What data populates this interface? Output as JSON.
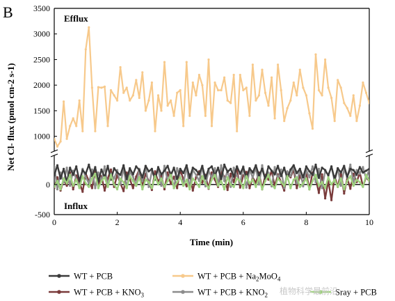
{
  "panel_label": "B",
  "chart_data": {
    "type": "line",
    "xlabel": "Time (min)",
    "ylabel": "Net Cl- flux (pmol cm-2 s-1)",
    "annotations": {
      "top": "Efflux",
      "bottom": "Influx"
    },
    "x_ticks": [
      "0",
      "2",
      "4",
      "6",
      "8",
      "10"
    ],
    "y_ticks_upper": [
      "1000",
      "1500",
      "2000",
      "2500",
      "3000",
      "3500"
    ],
    "y_ticks_lower": [
      "-500",
      "0"
    ],
    "xlim": [
      0,
      10
    ],
    "ylim_upper": [
      750,
      3500
    ],
    "ylim_lower": [
      -500,
      450
    ],
    "axis_break": true,
    "legend": [
      "WT + PCB",
      "WT + PCB + Na2MoO4",
      "WT + PCB + KNO3",
      "WT + PCB + KNO2",
      "Sray + PCB"
    ],
    "series": [
      {
        "name": "WT + PCB",
        "color": "#3a3a3a",
        "x": [
          0,
          0.1,
          0.2,
          0.3,
          0.4,
          0.5,
          0.6,
          0.7,
          0.8,
          0.9,
          1.0,
          1.1,
          1.2,
          1.3,
          1.4,
          1.5,
          1.6,
          1.7,
          1.8,
          1.9,
          2.0,
          2.1,
          2.2,
          2.3,
          2.4,
          2.5,
          2.6,
          2.7,
          2.8,
          2.9,
          3.0,
          3.1,
          3.2,
          3.3,
          3.4,
          3.5,
          3.6,
          3.7,
          3.8,
          3.9,
          4.0,
          4.1,
          4.2,
          4.3,
          4.4,
          4.5,
          4.6,
          4.7,
          4.8,
          4.9,
          5.0,
          5.1,
          5.2,
          5.3,
          5.4,
          5.5,
          5.6,
          5.7,
          5.8,
          5.9,
          6.0,
          6.1,
          6.2,
          6.3,
          6.4,
          6.5,
          6.6,
          6.7,
          6.8,
          6.9,
          7.0,
          7.1,
          7.2,
          7.3,
          7.4,
          7.5,
          7.6,
          7.7,
          7.8,
          7.9,
          8.0,
          8.1,
          8.2,
          8.3,
          8.4,
          8.5,
          8.6,
          8.7,
          8.8,
          8.9,
          9.0,
          9.1,
          9.2,
          9.3,
          9.4,
          9.5,
          9.6,
          9.7,
          9.8,
          9.9,
          10.0
        ],
        "y": [
          150,
          320,
          100,
          260,
          40,
          280,
          160,
          300,
          60,
          240,
          180,
          330,
          140,
          290,
          50,
          250,
          120,
          310,
          80,
          270,
          200,
          160,
          320,
          90,
          270,
          170,
          300,
          240,
          120,
          310,
          220,
          260,
          80,
          290,
          170,
          230,
          310,
          150,
          280,
          90,
          260,
          190,
          320,
          110,
          280,
          240,
          170,
          310,
          100,
          260,
          300,
          150,
          280,
          90,
          330,
          210,
          260,
          130,
          300,
          180,
          290,
          110,
          270,
          200,
          320,
          150,
          260,
          90,
          300,
          230,
          170,
          310,
          140,
          280,
          100,
          250,
          320,
          190,
          260,
          120,
          300,
          220,
          160,
          330,
          110,
          280,
          240,
          150,
          300,
          90,
          270,
          200,
          310,
          130,
          260,
          240,
          160,
          290,
          200,
          230,
          260
        ]
      },
      {
        "name": "WT + PCB + Na2MoO4",
        "color": "#f7c98b",
        "x": [
          0,
          0.1,
          0.2,
          0.3,
          0.4,
          0.5,
          0.6,
          0.7,
          0.8,
          0.9,
          1.0,
          1.1,
          1.2,
          1.3,
          1.4,
          1.5,
          1.6,
          1.7,
          1.8,
          1.9,
          2.0,
          2.1,
          2.2,
          2.3,
          2.4,
          2.5,
          2.6,
          2.7,
          2.8,
          2.9,
          3.0,
          3.1,
          3.2,
          3.3,
          3.4,
          3.5,
          3.6,
          3.7,
          3.8,
          3.9,
          4.0,
          4.1,
          4.2,
          4.3,
          4.4,
          4.5,
          4.6,
          4.7,
          4.8,
          4.9,
          5.0,
          5.1,
          5.2,
          5.3,
          5.4,
          5.5,
          5.6,
          5.7,
          5.8,
          5.9,
          6.0,
          6.1,
          6.2,
          6.3,
          6.4,
          6.5,
          6.6,
          6.7,
          6.8,
          6.9,
          7.0,
          7.1,
          7.2,
          7.3,
          7.4,
          7.5,
          7.6,
          7.7,
          7.8,
          7.9,
          8.0,
          8.1,
          8.2,
          8.3,
          8.4,
          8.5,
          8.6,
          8.7,
          8.8,
          8.9,
          9.0,
          9.1,
          9.2,
          9.3,
          9.4,
          9.5,
          9.6,
          9.7,
          9.8,
          9.9,
          10.0
        ],
        "y": [
          950,
          800,
          900,
          1680,
          950,
          1200,
          1350,
          1200,
          1700,
          1100,
          2700,
          3130,
          1950,
          1100,
          1960,
          1950,
          1970,
          1200,
          1900,
          1800,
          1700,
          2350,
          1850,
          1950,
          1700,
          1800,
          2100,
          1750,
          2250,
          1500,
          1700,
          2050,
          1100,
          1800,
          1500,
          2450,
          1600,
          1700,
          1400,
          1850,
          1900,
          1200,
          2450,
          1400,
          2050,
          1800,
          2200,
          2000,
          1400,
          2500,
          1200,
          2050,
          1900,
          1900,
          2150,
          1700,
          1650,
          2200,
          1100,
          2200,
          1900,
          1950,
          1400,
          2400,
          1700,
          1800,
          2300,
          1850,
          1600,
          2150,
          1350,
          2400,
          1900,
          1300,
          1550,
          1700,
          2050,
          1800,
          2300,
          1950,
          1800,
          1450,
          1150,
          2600,
          1900,
          1800,
          2500,
          1950,
          1750,
          1300,
          2100,
          1950,
          1650,
          1550,
          1400,
          1800,
          1300,
          1600,
          2050,
          1850,
          1650
        ]
      },
      {
        "name": "WT + PCB + KNO3",
        "color": "#7a3b3b",
        "x": [
          0,
          0.1,
          0.2,
          0.3,
          0.4,
          0.5,
          0.6,
          0.7,
          0.8,
          0.9,
          1.0,
          1.1,
          1.2,
          1.3,
          1.4,
          1.5,
          1.6,
          1.7,
          1.8,
          1.9,
          2.0,
          2.1,
          2.2,
          2.3,
          2.4,
          2.5,
          2.6,
          2.7,
          2.8,
          2.9,
          3.0,
          3.1,
          3.2,
          3.3,
          3.4,
          3.5,
          3.6,
          3.7,
          3.8,
          3.9,
          4.0,
          4.1,
          4.2,
          4.3,
          4.4,
          4.5,
          4.6,
          4.7,
          4.8,
          4.9,
          5.0,
          5.1,
          5.2,
          5.3,
          5.4,
          5.5,
          5.6,
          5.7,
          5.8,
          5.9,
          6.0,
          6.1,
          6.2,
          6.3,
          6.4,
          6.5,
          6.6,
          6.7,
          6.8,
          6.9,
          7.0,
          7.1,
          7.2,
          7.3,
          7.4,
          7.5,
          7.6,
          7.7,
          7.8,
          7.9,
          8.0,
          8.1,
          8.2,
          8.3,
          8.4,
          8.5,
          8.6,
          8.7,
          8.8,
          8.9,
          9.0,
          9.1,
          9.2,
          9.3,
          9.4,
          9.5,
          9.6,
          9.7,
          9.8,
          9.9,
          10.0
        ],
        "y": [
          -60,
          120,
          -100,
          80,
          -20,
          200,
          -80,
          150,
          40,
          -120,
          180,
          60,
          -60,
          220,
          0,
          140,
          -100,
          100,
          250,
          -40,
          160,
          20,
          -110,
          200,
          90,
          -60,
          130,
          250,
          -40,
          180,
          60,
          -90,
          220,
          40,
          150,
          -80,
          200,
          10,
          130,
          -60,
          240,
          90,
          -30,
          170,
          -100,
          120,
          220,
          30,
          160,
          -70,
          200,
          80,
          -40,
          220,
          130,
          -90,
          180,
          40,
          250,
          -50,
          150,
          210,
          -60,
          120,
          30,
          200,
          -80,
          160,
          80,
          230,
          -30,
          170,
          40,
          -100,
          200,
          120,
          250,
          -60,
          150,
          30,
          190,
          -80,
          200,
          100,
          -140,
          170,
          -230,
          60,
          -260,
          140,
          -40,
          210,
          -150,
          110,
          -70,
          180,
          40,
          200,
          -30,
          120,
          60
        ]
      },
      {
        "name": "WT + PCB + KNO2",
        "color": "#8c8c8c",
        "x": [
          0,
          0.1,
          0.2,
          0.3,
          0.4,
          0.5,
          0.6,
          0.7,
          0.8,
          0.9,
          1.0,
          1.1,
          1.2,
          1.3,
          1.4,
          1.5,
          1.6,
          1.7,
          1.8,
          1.9,
          2.0,
          2.1,
          2.2,
          2.3,
          2.4,
          2.5,
          2.6,
          2.7,
          2.8,
          2.9,
          3.0,
          3.1,
          3.2,
          3.3,
          3.4,
          3.5,
          3.6,
          3.7,
          3.8,
          3.9,
          4.0,
          4.1,
          4.2,
          4.3,
          4.4,
          4.5,
          4.6,
          4.7,
          4.8,
          4.9,
          5.0,
          5.1,
          5.2,
          5.3,
          5.4,
          5.5,
          5.6,
          5.7,
          5.8,
          5.9,
          6.0,
          6.1,
          6.2,
          6.3,
          6.4,
          6.5,
          6.6,
          6.7,
          6.8,
          6.9,
          7.0,
          7.1,
          7.2,
          7.3,
          7.4,
          7.5,
          7.6,
          7.7,
          7.8,
          7.9,
          8.0,
          8.1,
          8.2,
          8.3,
          8.4,
          8.5,
          8.6,
          8.7,
          8.8,
          8.9,
          9.0,
          9.1,
          9.2,
          9.3,
          9.4,
          9.5,
          9.6,
          9.7,
          9.8,
          9.9,
          10.0
        ],
        "y": [
          300,
          -80,
          200,
          40,
          280,
          -20,
          230,
          90,
          -40,
          260,
          120,
          20,
          250,
          -60,
          200,
          60,
          300,
          -30,
          180,
          100,
          240,
          0,
          270,
          -50,
          210,
          130,
          -20,
          260,
          60,
          300,
          -40,
          220,
          100,
          260,
          -20,
          310,
          60,
          200,
          -60,
          270,
          120,
          20,
          290,
          -50,
          240,
          160,
          60,
          300,
          -30,
          230,
          110,
          270,
          0,
          320,
          60,
          230,
          -40,
          280,
          150,
          20,
          300,
          -50,
          240,
          120,
          280,
          0,
          320,
          70,
          200,
          -30,
          290,
          100,
          250,
          -60,
          220,
          140,
          310,
          20,
          260,
          -30,
          240,
          120,
          300,
          40,
          260,
          -60,
          220,
          160,
          300,
          50,
          270,
          -20,
          250,
          120,
          330,
          40,
          240,
          180,
          290,
          100,
          250
        ]
      },
      {
        "name": "Sray + PCB",
        "color": "#9fd17e",
        "x": [
          0,
          0.1,
          0.2,
          0.3,
          0.4,
          0.5,
          0.6,
          0.7,
          0.8,
          0.9,
          1.0,
          1.1,
          1.2,
          1.3,
          1.4,
          1.5,
          1.6,
          1.7,
          1.8,
          1.9,
          2.0,
          2.1,
          2.2,
          2.3,
          2.4,
          2.5,
          2.6,
          2.7,
          2.8,
          2.9,
          3.0,
          3.1,
          3.2,
          3.3,
          3.4,
          3.5,
          3.6,
          3.7,
          3.8,
          3.9,
          4.0,
          4.1,
          4.2,
          4.3,
          4.4,
          4.5,
          4.6,
          4.7,
          4.8,
          4.9,
          5.0,
          5.1,
          5.2,
          5.3,
          5.4,
          5.5,
          5.6,
          5.7,
          5.8,
          5.9,
          6.0,
          6.1,
          6.2,
          6.3,
          6.4,
          6.5,
          6.6,
          6.7,
          6.8,
          6.9,
          7.0,
          7.1,
          7.2,
          7.3,
          7.4,
          7.5,
          7.6,
          7.7,
          7.8,
          7.9,
          8.0,
          8.1,
          8.2,
          8.3,
          8.4,
          8.5,
          8.6,
          8.7,
          8.8,
          8.9,
          9.0,
          9.1,
          9.2,
          9.3,
          9.4,
          9.5,
          9.6,
          9.7,
          9.8,
          9.9,
          10.0
        ],
        "y": [
          -40,
          60,
          -80,
          100,
          20,
          160,
          -20,
          80,
          -60,
          140,
          20,
          -40,
          100,
          180,
          -60,
          60,
          120,
          -40,
          160,
          0,
          -80,
          100,
          40,
          -60,
          140,
          60,
          -20,
          120,
          -80,
          80,
          40,
          -60,
          140,
          0,
          100,
          -40,
          60,
          160,
          -60,
          40,
          120,
          -20,
          80,
          -80,
          100,
          40,
          -40,
          140,
          20,
          -60,
          80,
          160,
          -20,
          60,
          -80,
          120,
          0,
          -40,
          100,
          60,
          -60,
          140,
          20,
          80,
          -40,
          120,
          -80,
          60,
          160,
          0,
          -60,
          100,
          40,
          -20,
          140,
          -60,
          80,
          120,
          -40,
          20,
          100,
          -80,
          60,
          160,
          -20,
          40,
          -60,
          120,
          0,
          80,
          -40,
          100,
          -80,
          60,
          140,
          -20,
          80,
          40,
          -40,
          160,
          60
        ]
      }
    ]
  },
  "watermark": "植物科学最前沿"
}
